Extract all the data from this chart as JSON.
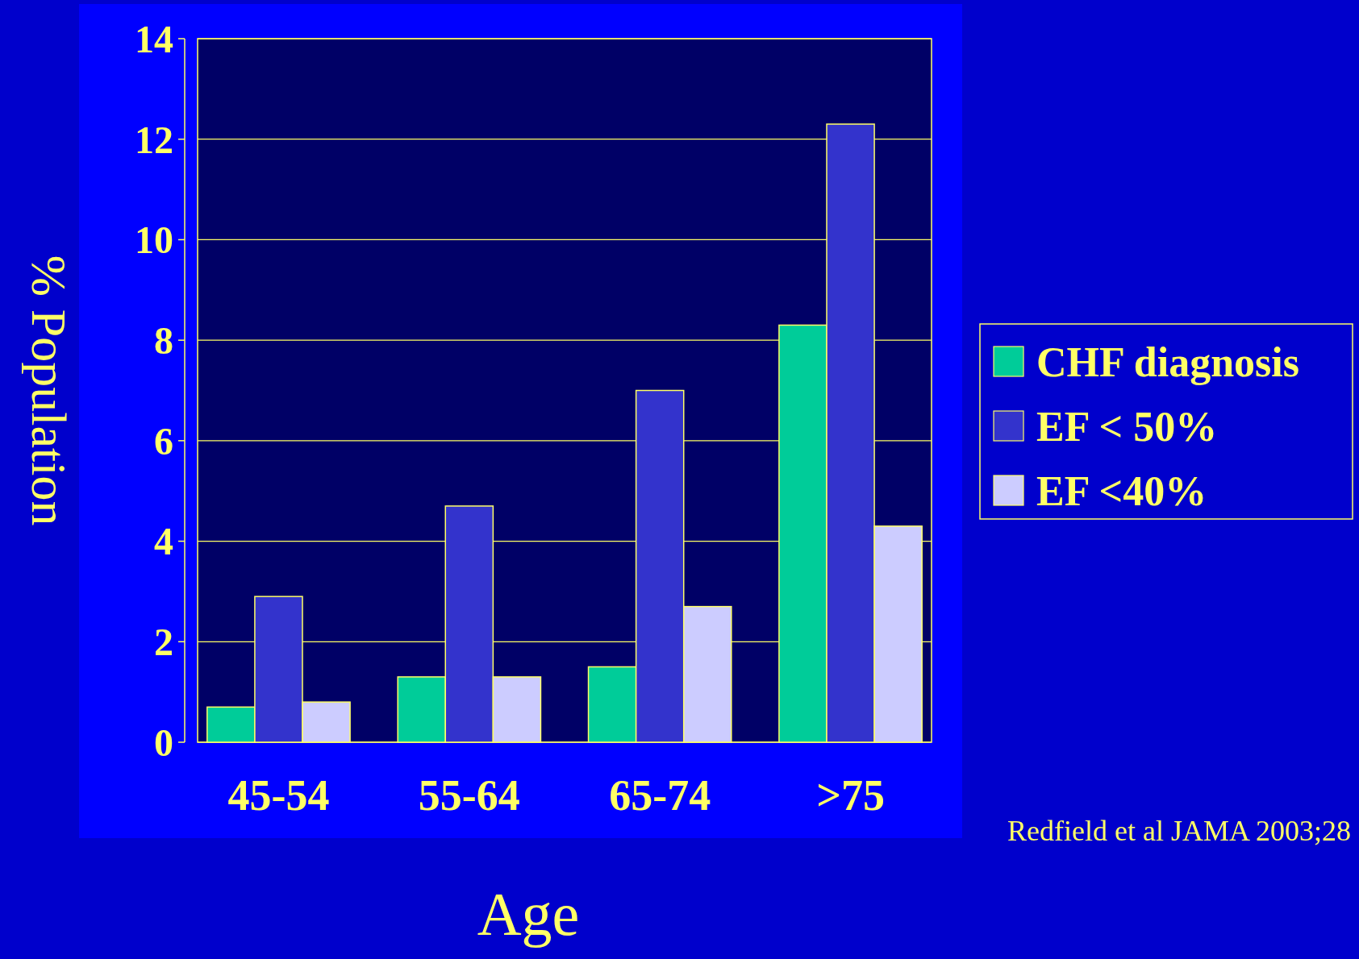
{
  "chart_data": {
    "type": "bar",
    "xlabel": "Age",
    "ylabel": "% Population",
    "categories": [
      "45-54",
      "55-64",
      "65-74",
      ">75"
    ],
    "series": [
      {
        "name": "CHF diagnosis",
        "color": "#00cc99",
        "values": [
          0.7,
          1.3,
          1.5,
          8.3
        ]
      },
      {
        "name": "EF < 50%",
        "color": "#3333cc",
        "values": [
          2.9,
          4.7,
          7.0,
          12.3
        ]
      },
      {
        "name": "EF <40%",
        "color": "#ccccff",
        "values": [
          0.8,
          1.3,
          2.7,
          4.3
        ]
      }
    ],
    "ylim": [
      0,
      14
    ],
    "yticks": [
      0,
      2,
      4,
      6,
      8,
      10,
      12,
      14
    ],
    "grid": "y",
    "legend": "right",
    "annotations": [
      "Redfield et al JAMA 2003;28"
    ]
  }
}
